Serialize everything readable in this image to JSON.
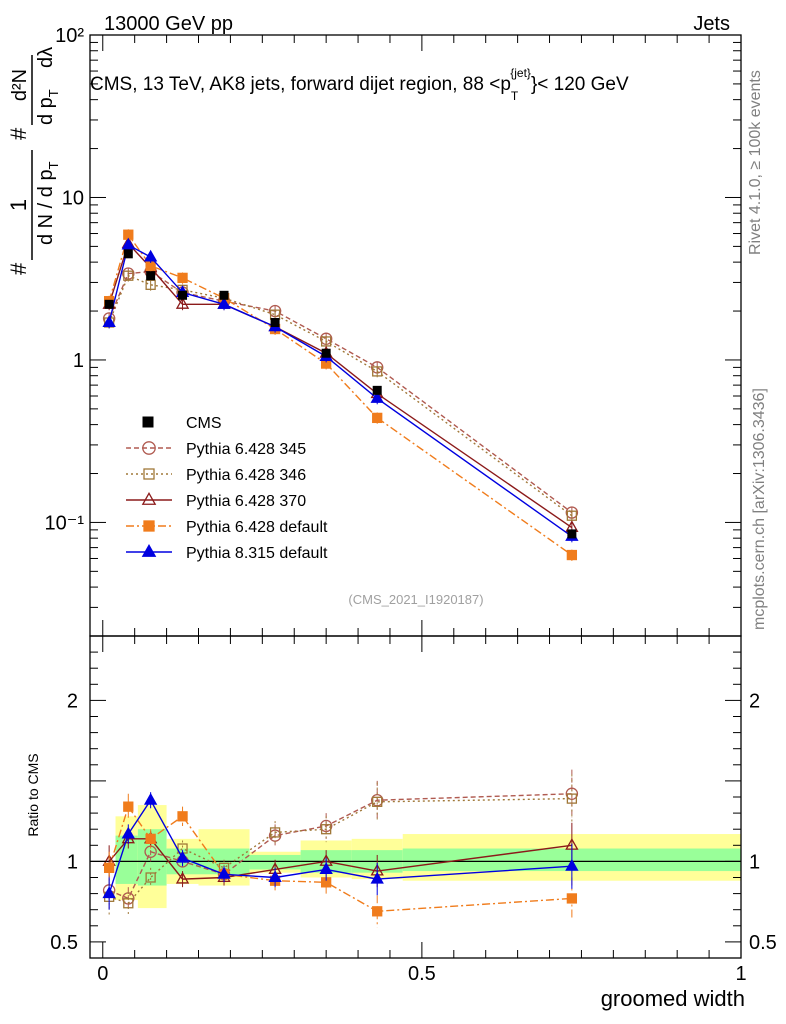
{
  "header": {
    "left": "13000 GeV pp",
    "right": "Jets"
  },
  "plot": {
    "title": "CMS, 13 TeV, AK8 jets, forward dijet region, 88 <p",
    "title_sup": "{jet}",
    "title_sub": "T",
    "title_end": "}< 120 GeV",
    "ylabel_lead": "#",
    "ylabel_num": "1",
    "ylabel_den": "d N / d p",
    "ylabel_den_sub": "T",
    "ylabel_hash": "#",
    "ylabel_num2": "d²N",
    "ylabel_den2": "d p",
    "ylabel_den2_sub": "T",
    "ylabel_dl": "dλ",
    "side_rivet": "Rivet 4.1.0, ≥ 100k events",
    "side_mcplots": "mcplots.cern.ch [arXiv:1306.3436]",
    "analysis_id": "(CMS_2021_I1920187)",
    "ratio_ylabel": "Ratio to CMS",
    "xlabel": "groomed width"
  },
  "chart_data": {
    "type": "scatter",
    "x": [
      0.01,
      0.04,
      0.075,
      0.125,
      0.19,
      0.27,
      0.35,
      0.43,
      0.735
    ],
    "xlim": [
      -0.02,
      1.0
    ],
    "ylim": [
      0.02,
      100
    ],
    "yscale": "log",
    "y_ticks": [
      {
        "value": 0.1,
        "label": "10⁻¹"
      },
      {
        "value": 1,
        "label": "1"
      },
      {
        "value": 10,
        "label": "10"
      },
      {
        "value": 100,
        "label": "10²"
      }
    ],
    "x_ticks": [
      {
        "value": 0,
        "label": "0"
      },
      {
        "value": 0.5,
        "label": "0.5"
      },
      {
        "value": 1,
        "label": "1"
      }
    ],
    "ratio_ylim": [
      0.4,
      2.4
    ],
    "ratio_ticks": [
      {
        "value": 0.5,
        "label": "0.5"
      },
      {
        "value": 1,
        "label": "1"
      },
      {
        "value": 2,
        "label": "2"
      }
    ],
    "cms": {
      "name": "CMS",
      "values": [
        2.2,
        4.5,
        3.3,
        2.5,
        2.5,
        1.7,
        1.1,
        0.65,
        0.085
      ]
    },
    "bands": [
      {
        "x0": 0.02,
        "x1": 0.055,
        "g_lo": 0.86,
        "g_hi": 1.16,
        "y_lo": 0.76,
        "y_hi": 1.28
      },
      {
        "x0": 0.055,
        "x1": 0.1,
        "g_lo": 0.85,
        "g_hi": 1.2,
        "y_lo": 0.71,
        "y_hi": 1.35
      },
      {
        "x0": 0.1,
        "x1": 0.15,
        "g_lo": 0.92,
        "g_hi": 1.08,
        "y_lo": 0.86,
        "y_hi": 1.14
      },
      {
        "x0": 0.15,
        "x1": 0.23,
        "g_lo": 0.92,
        "g_hi": 1.08,
        "y_lo": 0.85,
        "y_hi": 1.2
      },
      {
        "x0": 0.23,
        "x1": 0.31,
        "g_lo": 0.95,
        "g_hi": 1.04,
        "y_lo": 0.93,
        "y_hi": 1.06
      },
      {
        "x0": 0.31,
        "x1": 0.39,
        "g_lo": 0.93,
        "g_hi": 1.07,
        "y_lo": 0.9,
        "y_hi": 1.13
      },
      {
        "x0": 0.39,
        "x1": 0.47,
        "g_lo": 0.93,
        "g_hi": 1.07,
        "y_lo": 0.89,
        "y_hi": 1.14
      },
      {
        "x0": 0.47,
        "x1": 1.0,
        "g_lo": 0.94,
        "g_hi": 1.08,
        "y_lo": 0.88,
        "y_hi": 1.17
      }
    ],
    "series": [
      {
        "name": "Pythia 6.428 345",
        "color": "#b05a50",
        "dash": "5,3",
        "marker": "circle",
        "filled": false,
        "values": [
          1.8,
          3.4,
          3.5,
          2.6,
          2.3,
          2.0,
          1.35,
          0.9,
          0.115
        ],
        "ratio": [
          0.82,
          0.77,
          1.06,
          1.0,
          0.92,
          1.16,
          1.22,
          1.38,
          1.42
        ],
        "rerr": [
          0.12,
          0.07,
          0.06,
          0.05,
          0.05,
          0.07,
          0.08,
          0.12,
          0.15
        ]
      },
      {
        "name": "Pythia 6.428 346",
        "color": "#a07838",
        "dash": "2,3",
        "marker": "square",
        "filled": false,
        "values": [
          1.7,
          3.3,
          2.9,
          2.7,
          2.4,
          1.9,
          1.3,
          0.85,
          0.11
        ],
        "ratio": [
          0.78,
          0.74,
          0.9,
          1.08,
          0.96,
          1.18,
          1.2,
          1.37,
          1.39
        ],
        "rerr": [
          0.12,
          0.07,
          0.06,
          0.05,
          0.05,
          0.07,
          0.08,
          0.12,
          0.15
        ]
      },
      {
        "name": "Pythia 6.428 370",
        "color": "#8b1a1a",
        "dash": "",
        "marker": "triangle",
        "filled": false,
        "values": [
          2.2,
          5.2,
          3.7,
          2.2,
          2.2,
          1.6,
          1.1,
          0.62,
          0.093
        ],
        "ratio": [
          1.0,
          1.14,
          1.14,
          0.89,
          0.9,
          0.95,
          1.0,
          0.94,
          1.1
        ],
        "rerr": [
          0.1,
          0.06,
          0.05,
          0.05,
          0.05,
          0.06,
          0.07,
          0.1,
          0.14
        ]
      },
      {
        "name": "Pythia 6.428 default",
        "color": "#f07c1c",
        "dash": "8,3,2,3",
        "marker": "square",
        "filled": true,
        "values": [
          2.3,
          5.9,
          3.8,
          3.2,
          2.4,
          1.55,
          0.95,
          0.44,
          0.063
        ],
        "ratio": [
          0.96,
          1.34,
          1.14,
          1.28,
          0.92,
          0.88,
          0.87,
          0.69,
          0.77
        ],
        "rerr": [
          0.1,
          0.08,
          0.06,
          0.06,
          0.05,
          0.06,
          0.07,
          0.1,
          0.13
        ]
      },
      {
        "name": "Pythia 8.315 default",
        "color": "#0000e0",
        "dash": "",
        "marker": "triangle",
        "filled": true,
        "values": [
          1.7,
          5.1,
          4.3,
          2.6,
          2.2,
          1.6,
          1.05,
          0.58,
          0.082
        ],
        "ratio": [
          0.8,
          1.17,
          1.38,
          1.02,
          0.92,
          0.9,
          0.95,
          0.89,
          0.97
        ],
        "rerr": [
          0.1,
          0.06,
          0.05,
          0.05,
          0.05,
          0.06,
          0.07,
          0.1,
          0.14
        ]
      }
    ]
  }
}
